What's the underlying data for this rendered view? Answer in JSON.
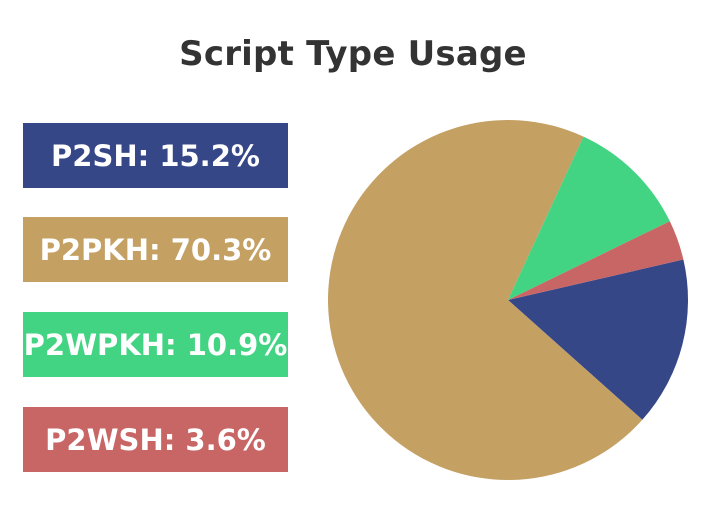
{
  "chart_data": {
    "type": "pie",
    "title": "Script Type Usage",
    "start_angle_deg": 77,
    "legend_position": "left",
    "slices": [
      {
        "label": "P2SH",
        "value": 15.2,
        "color": "#364788",
        "legend_text": "P2SH: 15.2%"
      },
      {
        "label": "P2PKH",
        "value": 70.3,
        "color": "#c4a063",
        "legend_text": "P2PKH: 70.3%"
      },
      {
        "label": "P2WPKH",
        "value": 10.9,
        "color": "#43d483",
        "legend_text": "P2WPKH: 10.9%"
      },
      {
        "label": "P2WSH",
        "value": 3.6,
        "color": "#c86565",
        "legend_text": "P2WSH: 3.6%"
      }
    ]
  }
}
